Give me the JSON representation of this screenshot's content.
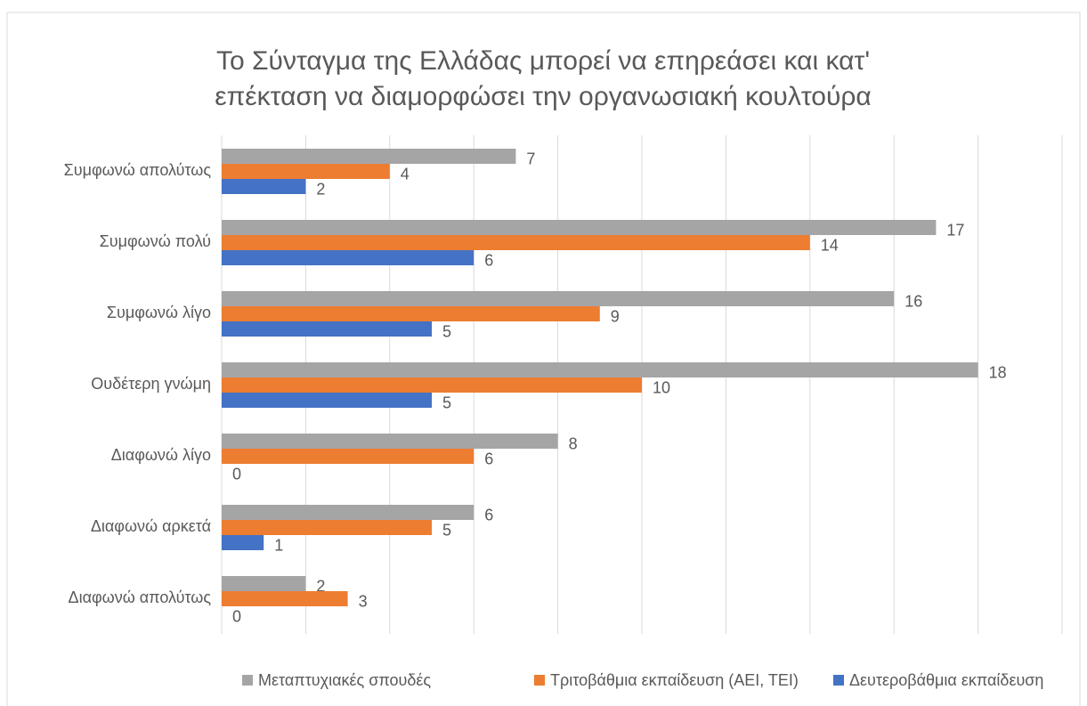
{
  "chart_data": {
    "type": "hbar",
    "title": [
      "Το Σύνταγμα της Ελλάδας μπορεί να επηρεάσει και κατ'",
      "επέκταση να διαμορφώσει την οργανωσιακή κουλτούρα"
    ],
    "categories": [
      "Συμφωνώ απολύτως",
      "Συμφωνώ πολύ",
      "Συμφωνώ λίγο",
      "Ουδέτερη γνώμη",
      "Διαφωνώ λίγο",
      "Διαφωνώ αρκετά",
      "Διαφωνώ απολύτως"
    ],
    "series": [
      {
        "name": "Μεταπτυχιακές σπουδές",
        "color": "#a5a5a5",
        "values": [
          7,
          17,
          16,
          18,
          8,
          6,
          2
        ]
      },
      {
        "name": "Τριτοβάθμια εκπαίδευση (ΑΕΙ, ΤΕΙ)",
        "color": "#ed7d31",
        "values": [
          4,
          14,
          9,
          10,
          6,
          5,
          3
        ]
      },
      {
        "name": "Δευτεροβάθμια εκπαίδευση",
        "color": "#4472c4",
        "values": [
          2,
          6,
          5,
          5,
          0,
          1,
          0
        ]
      }
    ],
    "xlim": [
      0,
      20
    ],
    "xticks": [
      0,
      2,
      4,
      6,
      8,
      10,
      12,
      14,
      16,
      18,
      20
    ],
    "grid": true,
    "legend": "bottom"
  }
}
